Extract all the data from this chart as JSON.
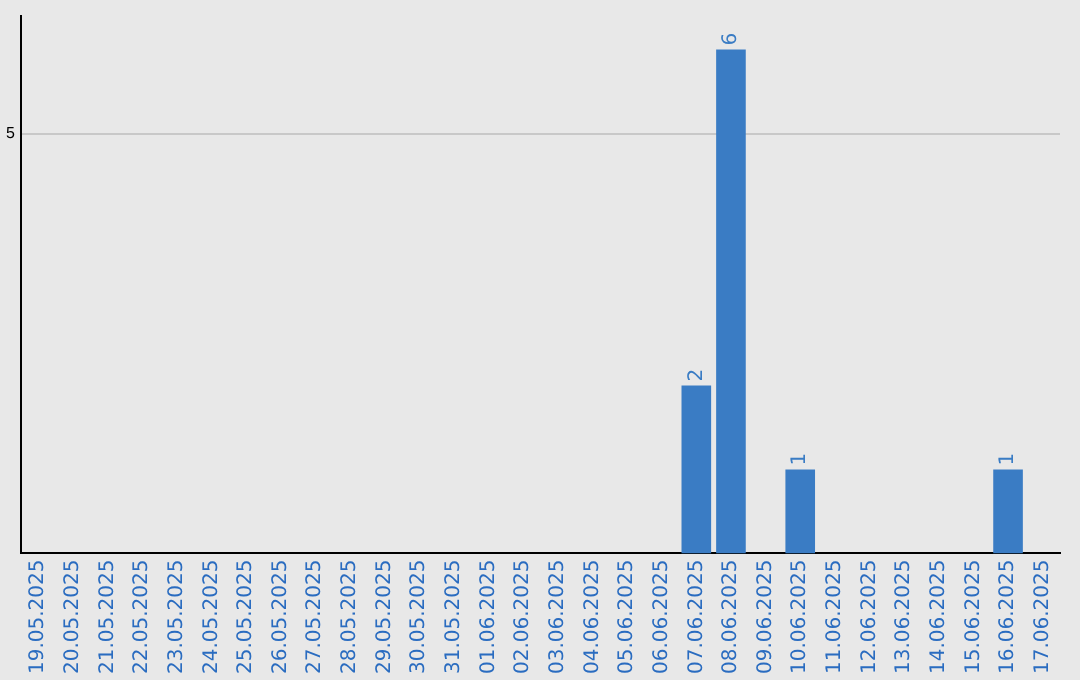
{
  "chart_data": {
    "type": "bar",
    "categories": [
      "19.05.2025",
      "20.05.2025",
      "21.05.2025",
      "22.05.2025",
      "23.05.2025",
      "24.05.2025",
      "25.05.2025",
      "26.05.2025",
      "27.05.2025",
      "28.05.2025",
      "29.05.2025",
      "30.05.2025",
      "31.05.2025",
      "01.06.2025",
      "02.06.2025",
      "03.06.2025",
      "04.06.2025",
      "05.06.2025",
      "06.06.2025",
      "07.06.2025",
      "08.06.2025",
      "09.06.2025",
      "10.06.2025",
      "11.06.2025",
      "12.06.2025",
      "13.06.2025",
      "14.06.2025",
      "15.06.2025",
      "16.06.2025",
      "17.06.2025"
    ],
    "values": [
      null,
      null,
      null,
      null,
      null,
      null,
      null,
      null,
      null,
      null,
      null,
      null,
      null,
      null,
      null,
      null,
      null,
      null,
      null,
      2,
      6,
      null,
      1,
      null,
      null,
      null,
      null,
      null,
      1,
      null
    ],
    "color": "#3a7cc4",
    "ylim": [
      0,
      6.4
    ],
    "yticks": [
      5
    ],
    "grid": "y",
    "data_labels": true
  }
}
